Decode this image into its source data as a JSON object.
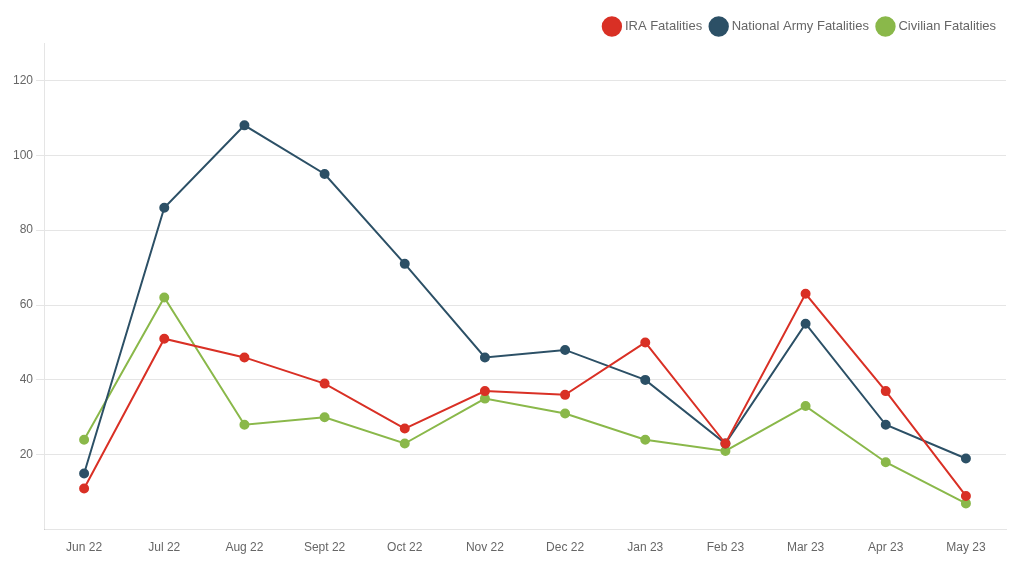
{
  "chart_data": {
    "type": "line",
    "categories": [
      "Jun 22",
      "Jul 22",
      "Aug 22",
      "Sept 22",
      "Oct 22",
      "Nov 22",
      "Dec 22",
      "Jan 23",
      "Feb 23",
      "Mar 23",
      "Apr 23",
      "May 23"
    ],
    "series": [
      {
        "name": "IRA Fatalities",
        "color": "#d93025",
        "values": [
          11,
          51,
          46,
          39,
          27,
          37,
          36,
          50,
          23,
          63,
          37,
          9
        ]
      },
      {
        "name": "National Army Fatalities",
        "color": "#2c5066",
        "values": [
          15,
          86,
          108,
          95,
          71,
          46,
          48,
          40,
          23,
          55,
          28,
          19
        ]
      },
      {
        "name": "Civilian Fatalities",
        "color": "#8ab84a",
        "values": [
          24,
          62,
          28,
          30,
          23,
          35,
          31,
          24,
          21,
          33,
          18,
          7
        ]
      }
    ],
    "ylim": [
      0,
      130
    ],
    "yticks": [
      20,
      40,
      60,
      80,
      100,
      120
    ],
    "grid": true,
    "legend": "upper right",
    "marker": "circle"
  }
}
